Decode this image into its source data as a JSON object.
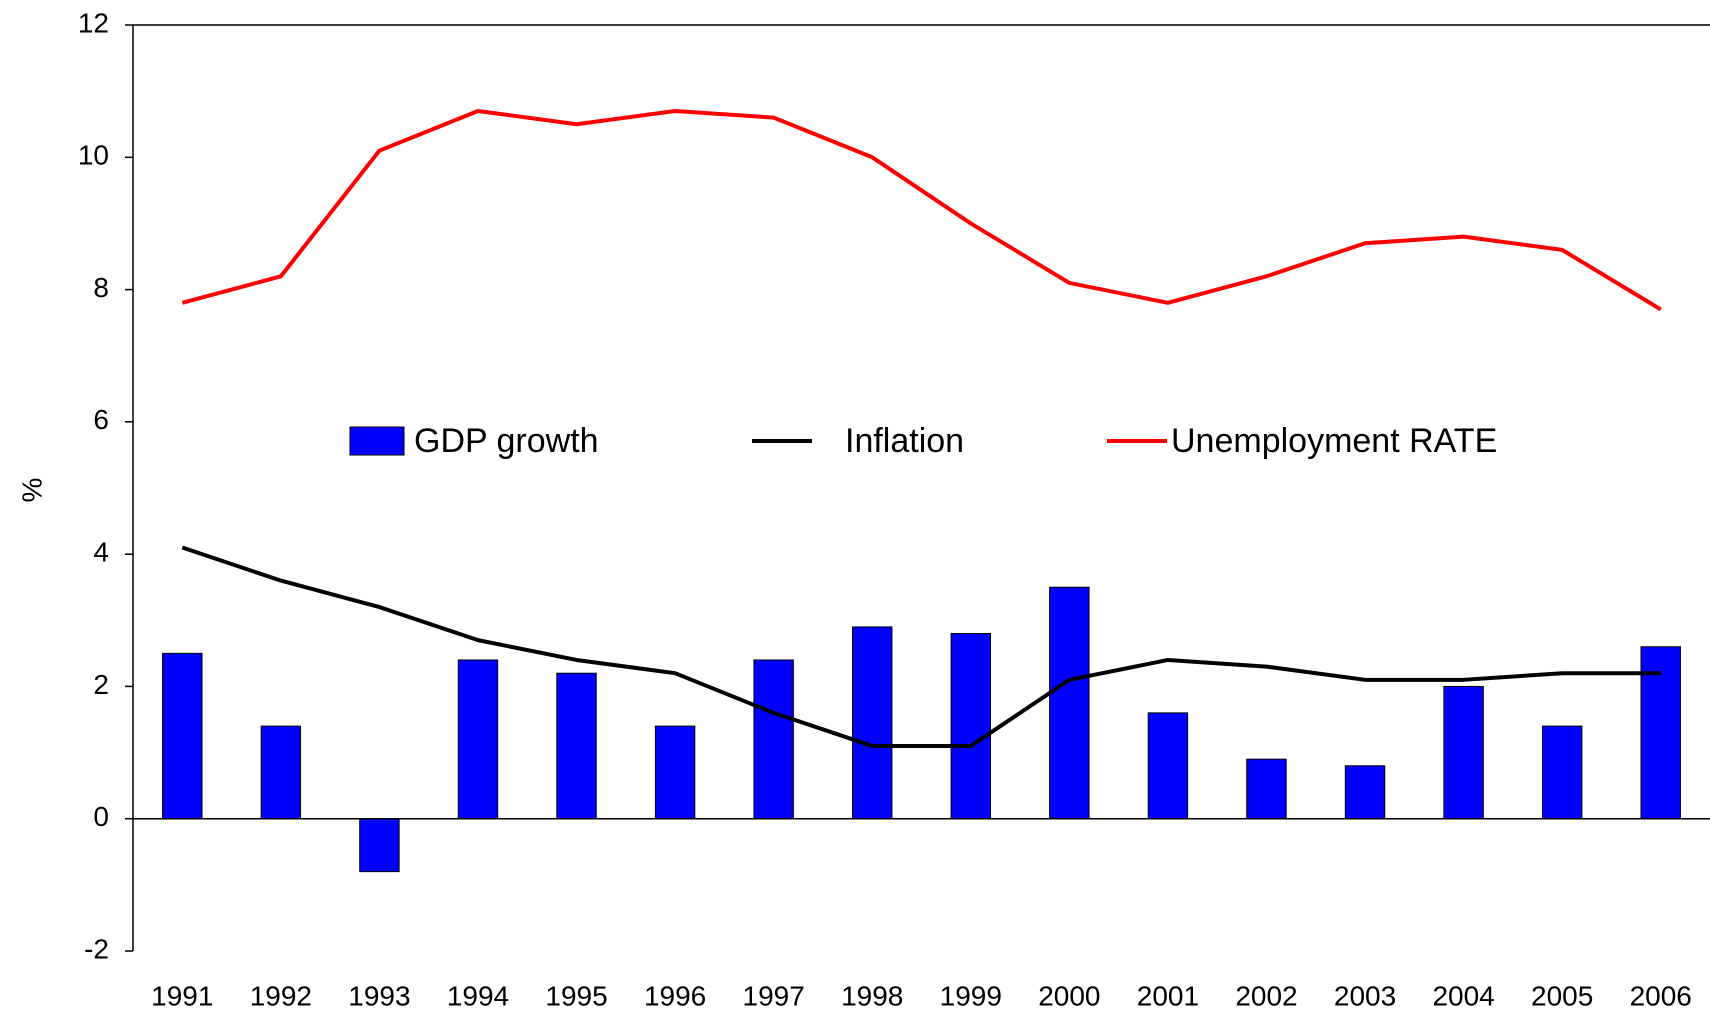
{
  "chart_data": {
    "type": "bar",
    "y_label": "%",
    "categories": [
      "1991",
      "1992",
      "1993",
      "1994",
      "1995",
      "1996",
      "1997",
      "1998",
      "1999",
      "2000",
      "2001",
      "2002",
      "2003",
      "2004",
      "2005",
      "2006"
    ],
    "series": [
      {
        "name": "GDP growth",
        "type": "bar",
        "color": "#0000ff",
        "values": [
          2.5,
          1.4,
          -0.8,
          2.4,
          2.2,
          1.4,
          2.4,
          2.9,
          2.8,
          3.5,
          1.6,
          0.9,
          0.8,
          2.0,
          1.4,
          2.6
        ]
      },
      {
        "name": "Inflation",
        "type": "line",
        "color": "#000000",
        "values": [
          4.1,
          3.6,
          3.2,
          2.7,
          2.4,
          2.2,
          1.6,
          1.1,
          1.1,
          2.1,
          2.4,
          2.3,
          2.1,
          2.1,
          2.2,
          2.2
        ]
      },
      {
        "name": "Unemployment RATE",
        "type": "line",
        "color": "#ff0000",
        "values": [
          7.8,
          8.2,
          10.1,
          10.7,
          10.5,
          10.7,
          10.6,
          10.0,
          9.0,
          8.1,
          7.8,
          8.2,
          8.7,
          8.8,
          8.6,
          7.7
        ]
      }
    ],
    "ylim": [
      -2,
      12
    ],
    "yticks": [
      -2,
      0,
      2,
      4,
      6,
      8,
      10,
      12
    ],
    "grid": false
  }
}
